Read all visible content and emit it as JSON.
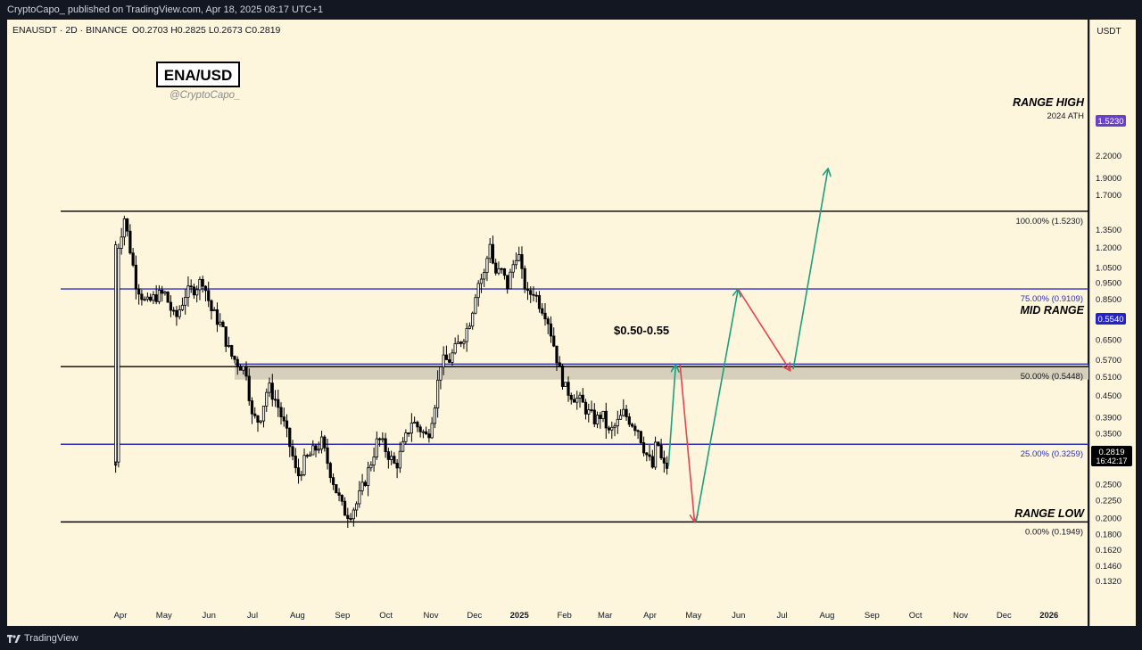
{
  "header": {
    "published_text": "CryptoCapo_ published on TradingView.com, Apr 18, 2025 08:17 UTC+1"
  },
  "symbol_info": {
    "ticker": "ENAUSDT · 2D · BINANCE",
    "ohlc": "O0.2703  H0.2825  L0.2673  C0.2819"
  },
  "watermark": {
    "title": "ENA/USD",
    "handle": "@CryptoCapo_"
  },
  "price_scale": {
    "currency": "USDT",
    "tick_labels": [
      "2.2000",
      "1.9000",
      "1.7000",
      "1.5230",
      "1.3500",
      "1.2000",
      "1.0500",
      "0.9500",
      "0.8500",
      "0.7500",
      "0.6500",
      "0.5700",
      "0.5540",
      "0.5100",
      "0.4500",
      "0.3900",
      "0.3500",
      "0.3100",
      "0.2819",
      "0.2500",
      "0.2250",
      "0.2000",
      "0.1800",
      "0.1620",
      "0.1460",
      "0.1320"
    ],
    "current_price": "0.2819",
    "countdown": "16:42:17",
    "range_high_badge": "1.5230",
    "mid_range_badge": "0.5540"
  },
  "annotations": {
    "range_high": "RANGE HIGH",
    "range_high_sub": "2024 ATH",
    "mid_range": "MID RANGE",
    "range_low": "RANGE LOW",
    "zone": "$0.50-0.55"
  },
  "footer": {
    "brand": "TradingView"
  },
  "chart_data": {
    "type": "candlestick",
    "symbol": "ENAUSDT",
    "interval": "2D",
    "exchange": "BINANCE",
    "y_scale": "log",
    "ylim": [
      0.128,
      2.4
    ],
    "x_ticks": [
      "Apr",
      "May",
      "Jun",
      "Jul",
      "Aug",
      "Sep",
      "Oct",
      "Nov",
      "Dec",
      "2025",
      "Feb",
      "Mar",
      "Apr",
      "May",
      "Jun",
      "Jul",
      "Aug",
      "Sep",
      "Oct",
      "Nov",
      "Dec",
      "2026"
    ],
    "fib_levels": [
      {
        "label": "100.00% (1.5230)",
        "value": 1.523,
        "color": "#000000"
      },
      {
        "label": "75.00% (0.9109)",
        "value": 0.9109,
        "color": "#2f2fb7"
      },
      {
        "label": "50.00% (0.5448)",
        "value": 0.5448,
        "color": "#000000"
      },
      {
        "label": "25.00% (0.3259)",
        "value": 0.3259,
        "color": "#2f2fb7"
      },
      {
        "label": "0.00% (0.1949)",
        "value": 0.1949,
        "color": "#000000"
      }
    ],
    "mid_range_line": 0.554,
    "zone": [
      0.5,
      0.55
    ],
    "colors": {
      "bull": "#ffffff",
      "bear": "#000000",
      "green_arrow": "#1e9e7e",
      "red_arrow": "#e8424f",
      "blue_line": "#2f2fb7",
      "badge_purple": "#6a3fc9",
      "badge_blue": "#2323c9"
    },
    "price_path": [
      [
        "2024-04-02",
        0.29
      ],
      [
        "2024-04-04",
        1.22
      ],
      [
        "2024-04-08",
        1.46
      ],
      [
        "2024-04-11",
        1.25
      ],
      [
        "2024-04-16",
        0.95
      ],
      [
        "2024-04-23",
        0.82
      ],
      [
        "2024-04-30",
        0.87
      ],
      [
        "2024-05-06",
        0.88
      ],
      [
        "2024-05-13",
        0.74
      ],
      [
        "2024-05-20",
        0.88
      ],
      [
        "2024-05-27",
        0.92
      ],
      [
        "2024-06-01",
        0.97
      ],
      [
        "2024-06-07",
        0.79
      ],
      [
        "2024-06-14",
        0.71
      ],
      [
        "2024-06-20",
        0.59
      ],
      [
        "2024-06-25",
        0.56
      ],
      [
        "2024-07-01",
        0.53
      ],
      [
        "2024-07-05",
        0.39
      ],
      [
        "2024-07-10",
        0.38
      ],
      [
        "2024-07-16",
        0.48
      ],
      [
        "2024-07-22",
        0.43
      ],
      [
        "2024-07-28",
        0.36
      ],
      [
        "2024-08-02",
        0.3
      ],
      [
        "2024-08-05",
        0.26
      ],
      [
        "2024-08-10",
        0.29
      ],
      [
        "2024-08-16",
        0.31
      ],
      [
        "2024-08-22",
        0.33
      ],
      [
        "2024-08-27",
        0.28
      ],
      [
        "2024-09-01",
        0.24
      ],
      [
        "2024-09-06",
        0.21
      ],
      [
        "2024-09-10",
        0.205
      ],
      [
        "2024-09-15",
        0.22
      ],
      [
        "2024-09-20",
        0.25
      ],
      [
        "2024-09-25",
        0.29
      ],
      [
        "2024-09-30",
        0.34
      ],
      [
        "2024-10-06",
        0.31
      ],
      [
        "2024-10-12",
        0.28
      ],
      [
        "2024-10-18",
        0.33
      ],
      [
        "2024-10-23",
        0.38
      ],
      [
        "2024-10-29",
        0.36
      ],
      [
        "2024-11-03",
        0.34
      ],
      [
        "2024-11-08",
        0.43
      ],
      [
        "2024-11-12",
        0.56
      ],
      [
        "2024-11-18",
        0.57
      ],
      [
        "2024-11-24",
        0.63
      ],
      [
        "2024-11-29",
        0.68
      ],
      [
        "2024-12-03",
        0.76
      ],
      [
        "2024-12-07",
        0.94
      ],
      [
        "2024-12-12",
        1.0
      ],
      [
        "2024-12-16",
        1.25
      ],
      [
        "2024-12-19",
        1.01
      ],
      [
        "2024-12-24",
        1.02
      ],
      [
        "2024-12-28",
        0.93
      ],
      [
        "2025-01-01",
        1.07
      ],
      [
        "2025-01-04",
        1.19
      ],
      [
        "2025-01-07",
        1.0
      ],
      [
        "2025-01-11",
        0.87
      ],
      [
        "2025-01-15",
        0.9
      ],
      [
        "2025-01-19",
        0.83
      ],
      [
        "2025-01-24",
        0.77
      ],
      [
        "2025-01-29",
        0.63
      ],
      [
        "2025-02-02",
        0.53
      ],
      [
        "2025-02-06",
        0.47
      ],
      [
        "2025-02-11",
        0.45
      ],
      [
        "2025-02-17",
        0.43
      ],
      [
        "2025-02-22",
        0.4
      ],
      [
        "2025-02-27",
        0.38
      ],
      [
        "2025-03-03",
        0.4
      ],
      [
        "2025-03-08",
        0.35
      ],
      [
        "2025-03-13",
        0.37
      ],
      [
        "2025-03-18",
        0.4
      ],
      [
        "2025-03-23",
        0.38
      ],
      [
        "2025-03-28",
        0.36
      ],
      [
        "2025-04-02",
        0.31
      ],
      [
        "2025-04-07",
        0.28
      ],
      [
        "2025-04-10",
        0.34
      ],
      [
        "2025-04-14",
        0.28
      ],
      [
        "2025-04-18",
        0.2819
      ]
    ],
    "projection": [
      {
        "from": [
          "2025-04-18",
          0.2819
        ],
        "to": [
          "2025-04-23",
          0.552
        ],
        "color": "green"
      },
      {
        "from": [
          "2025-04-26",
          0.552
        ],
        "to": [
          "2025-05-06",
          0.1949
        ],
        "color": "red"
      },
      {
        "from": [
          "2025-05-07",
          0.1949
        ],
        "to": [
          "2025-06-05",
          0.91
        ],
        "color": "green"
      },
      {
        "from": [
          "2025-06-05",
          0.91
        ],
        "to": [
          "2025-07-11",
          0.53
        ],
        "color": "red"
      },
      {
        "from": [
          "2025-07-13",
          0.535
        ],
        "to": [
          "2025-08-06",
          2.02
        ],
        "color": "green"
      }
    ]
  }
}
